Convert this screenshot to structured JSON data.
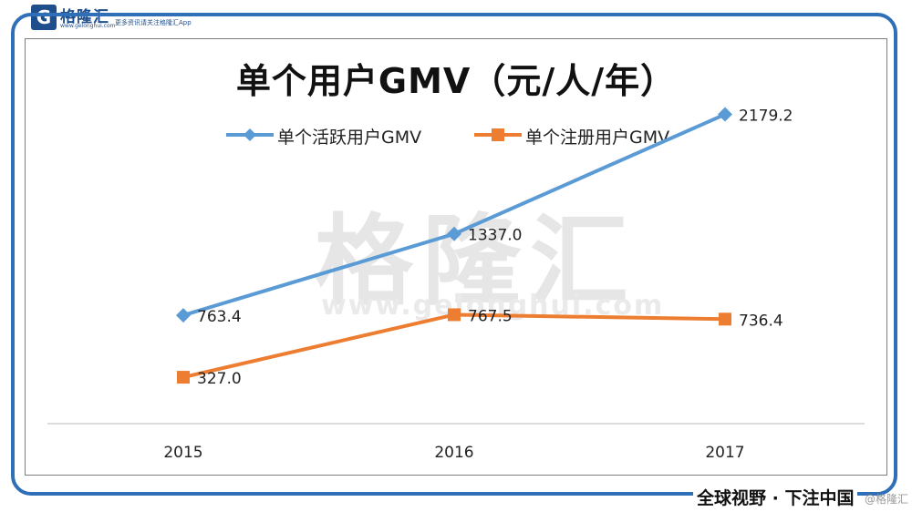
{
  "header": {
    "logo_glyph": "G",
    "logo_name": "格隆汇",
    "logo_url": "www.gelonghui.com",
    "tagline": "更多资讯请关注格隆汇App"
  },
  "watermark": {
    "brand": "格隆汇",
    "url": "www.gelonghui.com"
  },
  "footer": {
    "slogan": "全球视野 · 下注中国",
    "corner_mark": "@格隆汇"
  },
  "colors": {
    "frame": "#2f6fb8",
    "series_active": "#5b9bd5",
    "series_registered": "#ed7d31"
  },
  "chart_data": {
    "type": "line",
    "title": "单个用户GMV（元/人/年）",
    "xlabel": "",
    "ylabel": "",
    "categories": [
      "2015",
      "2016",
      "2017"
    ],
    "ylim": [
      0,
      2600
    ],
    "grid": false,
    "legend_position": "top",
    "series": [
      {
        "name": "单个活跃用户GMV",
        "values": [
          763.4,
          1337.0,
          2179.2
        ],
        "labels": [
          "763.4",
          "1337.0",
          "2179.2"
        ],
        "color": "#5b9bd5",
        "marker": "diamond"
      },
      {
        "name": "单个注册用户GMV",
        "values": [
          327.0,
          767.5,
          736.4
        ],
        "labels": [
          "327.0",
          "767.5",
          "736.4"
        ],
        "color": "#ed7d31",
        "marker": "square"
      }
    ]
  }
}
